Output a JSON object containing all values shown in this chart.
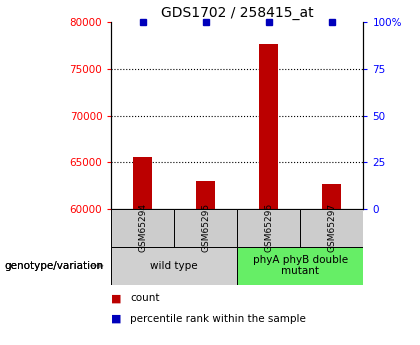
{
  "title": "GDS1702 / 258415_at",
  "samples": [
    "GSM65294",
    "GSM65295",
    "GSM65296",
    "GSM65297"
  ],
  "counts": [
    65600,
    63000,
    77700,
    62700
  ],
  "percentile_ranks": [
    100,
    100,
    100,
    100
  ],
  "ylim_left": [
    60000,
    80000
  ],
  "yticks_left": [
    60000,
    65000,
    70000,
    75000,
    80000
  ],
  "ylim_right": [
    0,
    100
  ],
  "yticks_right": [
    0,
    25,
    50,
    75,
    100
  ],
  "bar_color_red": "#bb0000",
  "bar_color_blue": "#0000bb",
  "groups": [
    {
      "label": "wild type",
      "samples": [
        0,
        1
      ],
      "color": "#d0d0d0"
    },
    {
      "label": "phyA phyB double\nmutant",
      "samples": [
        2,
        3
      ],
      "color": "#66ee66"
    }
  ],
  "xlabel_group": "genotype/variation",
  "legend_count": "count",
  "legend_percentile": "percentile rank within the sample",
  "title_fontsize": 10,
  "tick_fontsize": 7.5,
  "bar_width": 0.3
}
